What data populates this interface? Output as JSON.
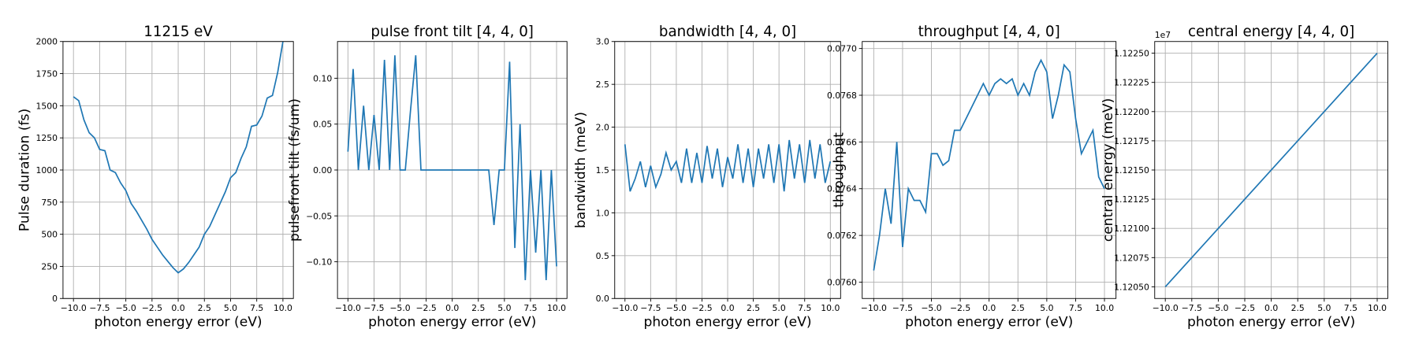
{
  "chart_data": [
    {
      "type": "line",
      "title": "11215 eV",
      "xlabel": "photon energy error (eV)",
      "ylabel": "Pulse duration (fs)",
      "color": "#1f77b4",
      "grid": true,
      "x": [
        -10,
        -9.5,
        -9,
        -8.5,
        -8,
        -7.5,
        -7,
        -6.5,
        -6,
        -5.5,
        -5,
        -4.5,
        -4,
        -3.5,
        -3,
        -2.5,
        -2,
        -1.5,
        -1,
        -0.5,
        0,
        0.5,
        1,
        1.5,
        2,
        2.5,
        3,
        3.5,
        4,
        4.5,
        5,
        5.5,
        6,
        6.5,
        7,
        7.5,
        8,
        8.5,
        9,
        9.5,
        10
      ],
      "values": [
        1570,
        1540,
        1390,
        1290,
        1250,
        1160,
        1150,
        1000,
        980,
        900,
        840,
        740,
        680,
        610,
        540,
        460,
        400,
        340,
        290,
        240,
        200,
        230,
        280,
        340,
        400,
        500,
        560,
        650,
        740,
        830,
        940,
        980,
        1090,
        1180,
        1340,
        1350,
        1420,
        1560,
        1580,
        1760,
        2000
      ],
      "xlim": [
        -11,
        11
      ],
      "xticks": [
        {
          "value": -10,
          "label": "−10.0"
        },
        {
          "value": -7.5,
          "label": "−7.5"
        },
        {
          "value": -5,
          "label": "−5.0"
        },
        {
          "value": -2.5,
          "label": "−2.5"
        },
        {
          "value": 0,
          "label": "0.0"
        },
        2.5,
        {
          "value": 5,
          "label": "5.0"
        },
        7.5,
        {
          "value": 10,
          "label": "10.0"
        }
      ],
      "ylim": [
        0,
        2000
      ],
      "yticks": [
        0,
        250,
        500,
        750,
        1000,
        1250,
        1500,
        1750,
        2000
      ]
    },
    {
      "type": "line",
      "title": "pulse front tilt [4, 4, 0]",
      "xlabel": "photon energy error (eV)",
      "ylabel": "pulsefront tilt (fs/um)",
      "color": "#1f77b4",
      "grid": true,
      "x": [
        -10,
        -9.5,
        -9,
        -8.5,
        -8,
        -7.5,
        -7,
        -6.5,
        -6,
        -5.5,
        -5,
        -4.5,
        -4,
        -3.5,
        -3,
        -2.5,
        -2,
        -1.5,
        -1,
        -0.5,
        0,
        0.5,
        1,
        1.5,
        2,
        2.5,
        3,
        3.5,
        4,
        4.5,
        5,
        5.5,
        6,
        6.5,
        7,
        7.5,
        8,
        8.5,
        9,
        9.5,
        10
      ],
      "values": [
        0.02,
        0.11,
        0,
        0.07,
        0,
        0.06,
        0,
        0.12,
        0,
        0.125,
        0,
        0,
        0.065,
        0.125,
        0,
        0,
        0,
        0,
        0,
        0,
        0,
        0,
        0,
        0,
        0,
        0,
        0,
        0,
        -0.06,
        0,
        0,
        0.118,
        -0.085,
        0.05,
        -0.12,
        0,
        -0.09,
        0,
        -0.12,
        0,
        -0.105
      ],
      "xlim": [
        -11,
        11
      ],
      "xticks": [
        {
          "value": -10,
          "label": "−10.0"
        },
        {
          "value": -7.5,
          "label": "−7.5"
        },
        {
          "value": -5,
          "label": "−5.0"
        },
        {
          "value": -2.5,
          "label": "−2.5"
        },
        {
          "value": 0,
          "label": "0.0"
        },
        2.5,
        {
          "value": 5,
          "label": "5.0"
        },
        7.5,
        {
          "value": 10,
          "label": "10.0"
        }
      ],
      "ylim": [
        -0.14,
        0.14
      ],
      "yticks": [
        {
          "value": -0.1,
          "label": "−0.10"
        },
        {
          "value": -0.05,
          "label": "−0.05"
        },
        {
          "value": 0,
          "label": "0.00"
        },
        0.05,
        {
          "value": 0.1,
          "label": "0.10"
        }
      ]
    },
    {
      "type": "line",
      "title": "bandwidth [4, 4, 0]",
      "xlabel": "photon energy error (eV)",
      "ylabel": "bandwidth (meV)",
      "color": "#1f77b4",
      "grid": true,
      "x": [
        -10,
        -9.5,
        -9,
        -8.5,
        -8,
        -7.5,
        -7,
        -6.5,
        -6,
        -5.5,
        -5,
        -4.5,
        -4,
        -3.5,
        -3,
        -2.5,
        -2,
        -1.5,
        -1,
        -0.5,
        0,
        0.5,
        1,
        1.5,
        2,
        2.5,
        3,
        3.5,
        4,
        4.5,
        5,
        5.5,
        6,
        6.5,
        7,
        7.5,
        8,
        8.5,
        9,
        9.5,
        10
      ],
      "values": [
        1.8,
        1.25,
        1.4,
        1.6,
        1.3,
        1.55,
        1.3,
        1.45,
        1.7,
        1.5,
        1.6,
        1.35,
        1.75,
        1.35,
        1.7,
        1.35,
        1.78,
        1.4,
        1.75,
        1.3,
        1.65,
        1.4,
        1.8,
        1.35,
        1.75,
        1.3,
        1.75,
        1.4,
        1.8,
        1.35,
        1.8,
        1.25,
        1.85,
        1.4,
        1.8,
        1.35,
        1.85,
        1.4,
        1.8,
        1.35,
        1.6
      ],
      "xlim": [
        -11,
        11
      ],
      "xticks": [
        {
          "value": -10,
          "label": "−10.0"
        },
        {
          "value": -7.5,
          "label": "−7.5"
        },
        {
          "value": -5,
          "label": "−5.0"
        },
        {
          "value": -2.5,
          "label": "−2.5"
        },
        {
          "value": 0,
          "label": "0.0"
        },
        2.5,
        {
          "value": 5,
          "label": "5.0"
        },
        7.5,
        {
          "value": 10,
          "label": "10.0"
        }
      ],
      "ylim": [
        0,
        3
      ],
      "yticks": [
        {
          "value": 0,
          "label": "0.0"
        },
        0.5,
        {
          "value": 1,
          "label": "1.0"
        },
        1.5,
        {
          "value": 2,
          "label": "2.0"
        },
        2.5,
        {
          "value": 3,
          "label": "3.0"
        }
      ]
    },
    {
      "type": "line",
      "title": "throughput [4, 4, 0]",
      "xlabel": "photon energy error (eV)",
      "ylabel": "throughput",
      "color": "#1f77b4",
      "grid": true,
      "x": [
        -10,
        -9.5,
        -9,
        -8.5,
        -8,
        -7.5,
        -7,
        -6.5,
        -6,
        -5.5,
        -5,
        -4.5,
        -4,
        -3.5,
        -3,
        -2.5,
        -2,
        -1.5,
        -1,
        -0.5,
        0,
        0.5,
        1,
        1.5,
        2,
        2.5,
        3,
        3.5,
        4,
        4.5,
        5,
        5.5,
        6,
        6.5,
        7,
        7.5,
        8,
        8.5,
        9,
        9.5,
        10
      ],
      "values": [
        0.07605,
        0.0762,
        0.0764,
        0.07625,
        0.0766,
        0.07615,
        0.0764,
        0.07635,
        0.07635,
        0.0763,
        0.07655,
        0.07655,
        0.0765,
        0.07652,
        0.07665,
        0.07665,
        0.0767,
        0.07675,
        0.0768,
        0.07685,
        0.0768,
        0.07685,
        0.07687,
        0.07685,
        0.07687,
        0.0768,
        0.07685,
        0.0768,
        0.0769,
        0.07695,
        0.0769,
        0.0767,
        0.0768,
        0.07693,
        0.0769,
        0.0767,
        0.07655,
        0.0766,
        0.07665,
        0.07645,
        0.0764
      ],
      "xlim": [
        -11,
        11
      ],
      "xticks": [
        {
          "value": -10,
          "label": "−10.0"
        },
        {
          "value": -7.5,
          "label": "−7.5"
        },
        {
          "value": -5,
          "label": "−5.0"
        },
        {
          "value": -2.5,
          "label": "−2.5"
        },
        {
          "value": 0,
          "label": "0.0"
        },
        2.5,
        {
          "value": 5,
          "label": "5.0"
        },
        7.5,
        {
          "value": 10,
          "label": "10.0"
        }
      ],
      "ylim": [
        0.07593,
        0.07703
      ],
      "yticks": [
        {
          "value": 0.076,
          "label": "0.0760"
        },
        {
          "value": 0.0762,
          "label": "0.0762"
        },
        {
          "value": 0.0764,
          "label": "0.0764"
        },
        {
          "value": 0.0766,
          "label": "0.0766"
        },
        {
          "value": 0.0768,
          "label": "0.0768"
        },
        {
          "value": 0.077,
          "label": "0.0770"
        }
      ]
    },
    {
      "type": "line",
      "title": "central energy [4, 4, 0]",
      "xlabel": "photon energy error (eV)",
      "ylabel": "central energy (meV)",
      "offset_text": "1e7",
      "color": "#1f77b4",
      "grid": true,
      "x": [
        -10,
        10
      ],
      "values": [
        11205000,
        11225000
      ],
      "xlim": [
        -11,
        11
      ],
      "xticks": [
        {
          "value": -10,
          "label": "−10.0"
        },
        {
          "value": -7.5,
          "label": "−7.5"
        },
        {
          "value": -5,
          "label": "−5.0"
        },
        {
          "value": -2.5,
          "label": "−2.5"
        },
        {
          "value": 0,
          "label": "0.0"
        },
        2.5,
        {
          "value": 5,
          "label": "5.0"
        },
        7.5,
        {
          "value": 10,
          "label": "10.0"
        }
      ],
      "ylim": [
        11204000,
        11226000
      ],
      "yticks": [
        {
          "value": 11205000,
          "label": "1.12050"
        },
        {
          "value": 11207500,
          "label": "1.12075"
        },
        {
          "value": 11210000,
          "label": "1.12100"
        },
        {
          "value": 11212500,
          "label": "1.12125"
        },
        {
          "value": 11215000,
          "label": "1.12150"
        },
        {
          "value": 11217500,
          "label": "1.12175"
        },
        {
          "value": 11220000,
          "label": "1.12200"
        },
        {
          "value": 11222500,
          "label": "1.12225"
        },
        {
          "value": 11225000,
          "label": "1.12250"
        }
      ]
    }
  ]
}
